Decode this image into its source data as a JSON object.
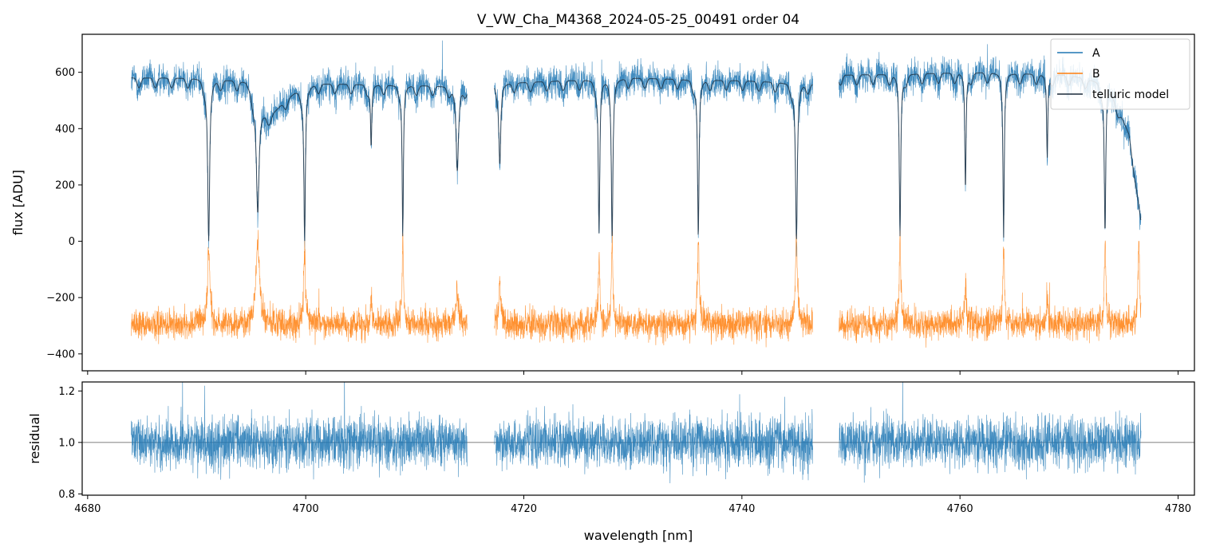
{
  "chart_data": {
    "type": "line",
    "title": "V_VW_Cha_M4368_2024-05-25_00491  order 04",
    "xlabel": "wavelength [nm]",
    "xlim": [
      4679.5,
      4781.5
    ],
    "x_ticks": [
      4680,
      4700,
      4720,
      4740,
      4760,
      4780
    ],
    "panels": [
      {
        "name": "flux",
        "ylabel": "flux [ADU]",
        "ylim": [
          -460,
          735
        ],
        "y_ticks": [
          -400,
          -200,
          0,
          200,
          400,
          600
        ],
        "y_tick_labels": [
          "−400",
          "−200",
          "0",
          "200",
          "400",
          "600"
        ],
        "legend": {
          "placement": "top-right",
          "entries": [
            "A",
            "B",
            "telluric model"
          ]
        },
        "series": [
          {
            "name": "A",
            "color": "#1f77b4",
            "noise": 40,
            "segments": [
              [
                4684.0,
                4714.8
              ],
              [
                4717.3,
                4746.5
              ],
              [
                4748.9,
                4776.6
              ]
            ],
            "continuum": [
              [
                4684.0,
                580
              ],
              [
                4690.0,
                580
              ],
              [
                4694.5,
                570
              ],
              [
                4696.5,
                440
              ],
              [
                4699.0,
                530
              ],
              [
                4701.0,
                560
              ],
              [
                4714.8,
                550
              ],
              [
                4717.3,
                560
              ],
              [
                4730.0,
                580
              ],
              [
                4740.0,
                570
              ],
              [
                4746.5,
                560
              ],
              [
                4748.9,
                590
              ],
              [
                4762.0,
                600
              ],
              [
                4770.0,
                590
              ],
              [
                4773.5,
                560
              ],
              [
                4775.5,
                380
              ],
              [
                4776.6,
                70
              ]
            ],
            "absorption_lines": [
              [
                4691.1,
                1.0,
                0.16
              ],
              [
                4695.6,
                0.8,
                0.22
              ],
              [
                4699.9,
                1.0,
                0.12
              ],
              [
                4706.0,
                0.4,
                0.1
              ],
              [
                4708.9,
                0.97,
                0.1
              ],
              [
                4713.9,
                0.55,
                0.2
              ],
              [
                4717.8,
                0.5,
                0.15
              ],
              [
                4726.9,
                0.95,
                0.12
              ],
              [
                4728.1,
                1.0,
                0.12
              ],
              [
                4736.0,
                0.98,
                0.12
              ],
              [
                4745.0,
                1.0,
                0.15
              ],
              [
                4754.5,
                0.97,
                0.12
              ],
              [
                4760.5,
                0.7,
                0.1
              ],
              [
                4764.0,
                0.98,
                0.1
              ],
              [
                4768.0,
                0.5,
                0.1
              ],
              [
                4773.3,
                0.95,
                0.12
              ]
            ]
          },
          {
            "name": "B",
            "color": "#ff7f0e",
            "noise": 38,
            "segments": [
              [
                4684.0,
                4714.8
              ],
              [
                4717.3,
                4746.5
              ],
              [
                4748.9,
                4776.6
              ]
            ],
            "baseline": -295,
            "emission_lines": [
              [
                4691.1,
                270,
                0.18
              ],
              [
                4695.6,
                290,
                0.28
              ],
              [
                4699.9,
                260,
                0.14
              ],
              [
                4706.0,
                100,
                0.12
              ],
              [
                4708.9,
                290,
                0.12
              ],
              [
                4713.9,
                120,
                0.2
              ],
              [
                4717.8,
                150,
                0.15
              ],
              [
                4726.9,
                250,
                0.12
              ],
              [
                4728.1,
                290,
                0.12
              ],
              [
                4736.0,
                300,
                0.12
              ],
              [
                4745.0,
                310,
                0.15
              ],
              [
                4754.5,
                300,
                0.12
              ],
              [
                4760.5,
                150,
                0.12
              ],
              [
                4764.0,
                280,
                0.12
              ],
              [
                4768.0,
                90,
                0.12
              ],
              [
                4773.3,
                270,
                0.12
              ],
              [
                4776.4,
                300,
                0.12
              ]
            ]
          },
          {
            "name": "telluric model",
            "color": "#1b2a3a",
            "opacity": 0.8,
            "model_of": "A"
          }
        ]
      },
      {
        "name": "residual",
        "ylabel": "residual",
        "ylim": [
          0.795,
          1.235
        ],
        "y_ticks": [
          0.8,
          1.0,
          1.2
        ],
        "y_tick_labels": [
          "0.8",
          "1.0",
          "1.2"
        ],
        "reference_line": 1.0,
        "series": [
          {
            "name": "residual",
            "color": "#1f77b4",
            "center": 1.0,
            "noise": 0.07,
            "segments": [
              [
                4684.0,
                4714.8
              ],
              [
                4717.3,
                4746.5
              ],
              [
                4748.9,
                4776.6
              ]
            ]
          }
        ]
      }
    ]
  }
}
